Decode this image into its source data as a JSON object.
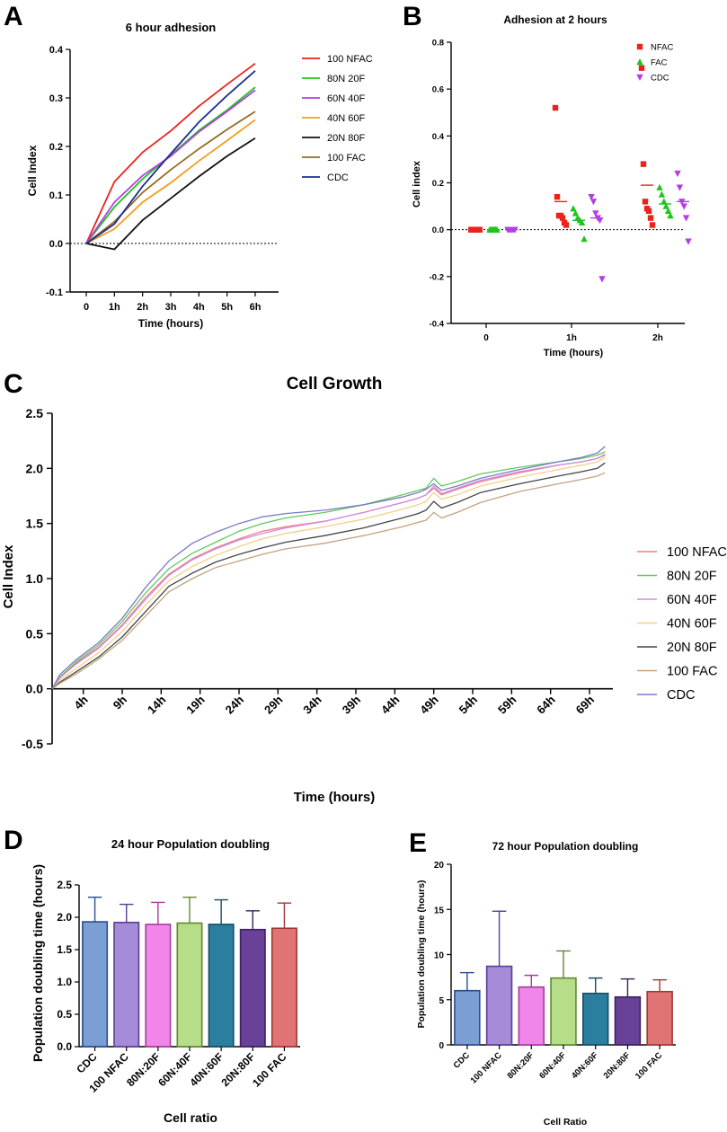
{
  "panels": {
    "A": {
      "label": "A"
    },
    "B": {
      "label": "B"
    },
    "C": {
      "label": "C"
    },
    "D": {
      "label": "D"
    },
    "E": {
      "label": "E"
    }
  },
  "chart_data": [
    {
      "id": "A",
      "type": "line",
      "title": "6 hour adhesion",
      "xlabel": "Time (hours)",
      "ylabel": "Cell Index",
      "categories": [
        "0",
        "1h",
        "2h",
        "3h",
        "4h",
        "5h",
        "6h"
      ],
      "ylim": [
        -0.1,
        0.4
      ],
      "yticks": [
        "-0.1",
        "0.0",
        "0.1",
        "0.2",
        "0.3",
        "0.4"
      ],
      "reference_line": 0,
      "legend": "right",
      "series": [
        {
          "name": "100 NFAC",
          "color": "#e8241c",
          "values": [
            0,
            0.127,
            0.188,
            0.232,
            0.283,
            0.328,
            0.371
          ]
        },
        {
          "name": "80N 20F",
          "color": "#1fc41c",
          "values": [
            0,
            0.075,
            0.133,
            0.182,
            0.233,
            0.275,
            0.322
          ]
        },
        {
          "name": "60N 40F",
          "color": "#b23fe0",
          "values": [
            0,
            0.085,
            0.14,
            0.18,
            0.23,
            0.272,
            0.316
          ]
        },
        {
          "name": "40N 60F",
          "color": "#f29c1c",
          "values": [
            0,
            0.03,
            0.085,
            0.125,
            0.17,
            0.212,
            0.255
          ]
        },
        {
          "name": "20N 80F",
          "color": "#111111",
          "values": [
            0,
            -0.012,
            0.048,
            0.093,
            0.138,
            0.18,
            0.217
          ]
        },
        {
          "name": "100 FAC",
          "color": "#946b22",
          "values": [
            0,
            0.045,
            0.105,
            0.152,
            0.195,
            0.235,
            0.272
          ]
        },
        {
          "name": "CDC",
          "color": "#1d2f8e",
          "values": [
            0,
            0.04,
            0.118,
            0.185,
            0.25,
            0.305,
            0.356
          ]
        }
      ]
    },
    {
      "id": "B",
      "type": "scatter",
      "title": "Adhesion at 2 hours",
      "xlabel": "Time (hours)",
      "ylabel": "Cell index",
      "categories": [
        "0",
        "1h",
        "2h"
      ],
      "ylim": [
        -0.4,
        0.8
      ],
      "yticks": [
        "-0.4",
        "-0.2",
        "0.0",
        "0.2",
        "0.4",
        "0.6",
        "0.8"
      ],
      "reference_line": 0,
      "legend": "top-right",
      "series": [
        {
          "name": "NFAC",
          "color": "#e8241c",
          "marker": "square",
          "groups": [
            {
              "category": "0",
              "mean": 0,
              "points": [
                0,
                0,
                0,
                0,
                0,
                0,
                0
              ]
            },
            {
              "category": "1h",
              "mean": 0.12,
              "points": [
                0.52,
                0.14,
                0.06,
                0.06,
                0.05,
                0.03,
                0.02
              ]
            },
            {
              "category": "2h",
              "mean": 0.19,
              "points": [
                0.69,
                0.28,
                0.12,
                0.09,
                0.08,
                0.05,
                0.02
              ]
            }
          ]
        },
        {
          "name": "FAC",
          "color": "#1fc41c",
          "marker": "triangle-up",
          "groups": [
            {
              "category": "0",
              "mean": 0,
              "points": [
                0,
                0,
                0,
                0,
                0,
                0
              ]
            },
            {
              "category": "1h",
              "mean": 0.04,
              "points": [
                0.09,
                0.07,
                0.05,
                0.04,
                0.03,
                -0.04
              ]
            },
            {
              "category": "2h",
              "mean": 0.11,
              "points": [
                0.18,
                0.15,
                0.12,
                0.1,
                0.08,
                0.06
              ]
            }
          ]
        },
        {
          "name": "CDC",
          "color": "#b23fe0",
          "marker": "triangle-down",
          "groups": [
            {
              "category": "0",
              "mean": 0,
              "points": [
                0,
                0,
                0,
                0,
                0,
                0
              ]
            },
            {
              "category": "1h",
              "mean": 0.05,
              "points": [
                0.14,
                0.12,
                0.07,
                0.05,
                0.04,
                -0.21
              ]
            },
            {
              "category": "2h",
              "mean": 0.12,
              "points": [
                0.24,
                0.18,
                0.12,
                0.1,
                0.05,
                -0.05
              ]
            }
          ]
        }
      ]
    },
    {
      "id": "C",
      "type": "line",
      "title": "Cell Growth",
      "xlabel": "Time (hours)",
      "ylabel": "Cell Index",
      "tick_labels": [
        "4h",
        "9h",
        "14h",
        "19h",
        "24h",
        "29h",
        "34h",
        "39h",
        "44h",
        "49h",
        "54h",
        "59h",
        "64h",
        "69h"
      ],
      "tick_values": [
        4,
        9,
        14,
        19,
        24,
        29,
        34,
        39,
        44,
        49,
        54,
        59,
        64,
        69
      ],
      "xlim": [
        0,
        72
      ],
      "ylim": [
        -0.5,
        2.5
      ],
      "yticks": [
        "-0.5",
        "0.0",
        "0.5",
        "1.0",
        "1.5",
        "2.0",
        "2.5"
      ],
      "legend": "right",
      "x": [
        0,
        1,
        3,
        6,
        9,
        12,
        15,
        18,
        21,
        24,
        27,
        30,
        35,
        40,
        45,
        47,
        48,
        49,
        50,
        52,
        55,
        60,
        65,
        68,
        70,
        71
      ],
      "series": [
        {
          "name": "100 NFAC",
          "color": "#ef7f86",
          "values": [
            0,
            0.1,
            0.23,
            0.38,
            0.58,
            0.83,
            1.04,
            1.18,
            1.28,
            1.36,
            1.43,
            1.47,
            1.52,
            1.6,
            1.69,
            1.73,
            1.76,
            1.82,
            1.76,
            1.81,
            1.88,
            1.96,
            2.03,
            2.06,
            2.09,
            2.12
          ]
        },
        {
          "name": "80N 20F",
          "color": "#5fc95c",
          "values": [
            0,
            0.11,
            0.24,
            0.4,
            0.61,
            0.87,
            1.09,
            1.23,
            1.33,
            1.43,
            1.5,
            1.55,
            1.6,
            1.67,
            1.76,
            1.8,
            1.82,
            1.91,
            1.84,
            1.88,
            1.95,
            2.01,
            2.06,
            2.09,
            2.12,
            2.15
          ]
        },
        {
          "name": "60N 40F",
          "color": "#d08ae0",
          "values": [
            0,
            0.1,
            0.22,
            0.37,
            0.57,
            0.81,
            1.03,
            1.17,
            1.27,
            1.35,
            1.41,
            1.46,
            1.52,
            1.6,
            1.69,
            1.73,
            1.76,
            1.84,
            1.77,
            1.82,
            1.89,
            1.97,
            2.03,
            2.06,
            2.09,
            2.13
          ]
        },
        {
          "name": "40N 60F",
          "color": "#f3d085",
          "values": [
            0,
            0.08,
            0.18,
            0.33,
            0.52,
            0.76,
            0.98,
            1.11,
            1.21,
            1.29,
            1.36,
            1.41,
            1.47,
            1.54,
            1.63,
            1.67,
            1.7,
            1.78,
            1.72,
            1.76,
            1.84,
            1.92,
            1.99,
            2.03,
            2.06,
            2.1
          ]
        },
        {
          "name": "20N 80F",
          "color": "#444444",
          "values": [
            0,
            0.06,
            0.15,
            0.29,
            0.47,
            0.7,
            0.93,
            1.05,
            1.15,
            1.22,
            1.28,
            1.33,
            1.39,
            1.46,
            1.55,
            1.59,
            1.62,
            1.7,
            1.64,
            1.69,
            1.78,
            1.86,
            1.93,
            1.97,
            2.0,
            2.05
          ]
        },
        {
          "name": "100 FAC",
          "color": "#c4a27e",
          "values": [
            0,
            0.05,
            0.13,
            0.27,
            0.44,
            0.66,
            0.88,
            1.0,
            1.1,
            1.16,
            1.22,
            1.27,
            1.32,
            1.39,
            1.47,
            1.51,
            1.53,
            1.6,
            1.55,
            1.6,
            1.69,
            1.79,
            1.86,
            1.9,
            1.93,
            1.96
          ]
        },
        {
          "name": "CDC",
          "color": "#7c79c6",
          "values": [
            0,
            0.13,
            0.26,
            0.42,
            0.64,
            0.92,
            1.16,
            1.32,
            1.42,
            1.5,
            1.56,
            1.59,
            1.62,
            1.67,
            1.74,
            1.78,
            1.81,
            1.86,
            1.8,
            1.84,
            1.91,
            1.99,
            2.06,
            2.1,
            2.14,
            2.2
          ]
        }
      ]
    },
    {
      "id": "D",
      "type": "bar",
      "title": "24 hour Population doubling",
      "xlabel": "Cell ratio",
      "ylabel": "Population doubling time (hours)",
      "categories": [
        "CDC",
        "100 NFAC",
        "80N:20F",
        "60N:40F",
        "40N:60F",
        "20N:80F",
        "100 FAC"
      ],
      "values": [
        1.93,
        1.92,
        1.89,
        1.91,
        1.89,
        1.81,
        1.83
      ],
      "errors": [
        0.38,
        0.28,
        0.34,
        0.4,
        0.38,
        0.29,
        0.39
      ],
      "colors": [
        "#7b9fd4",
        "#a58bd8",
        "#f087e8",
        "#b6dd87",
        "#2a7f9e",
        "#6a4199",
        "#e07474"
      ],
      "edge_colors": [
        "#2b4e8a",
        "#5a3d96",
        "#a73b9e",
        "#5f8a32",
        "#174e63",
        "#3b2160",
        "#a33535"
      ],
      "ylim": [
        0,
        2.5
      ],
      "yticks": [
        "0.0",
        "0.5",
        "1.0",
        "1.5",
        "2.0",
        "2.5"
      ]
    },
    {
      "id": "E",
      "type": "bar",
      "title": "72 hour Population doubling",
      "xlabel": "Cell Ratio",
      "ylabel": "Population doubling time (hours)",
      "categories": [
        "CDC",
        "100 NFAC",
        "80N:20F",
        "60N:40F",
        "40N:60F",
        "20N:80F",
        "100 FAC"
      ],
      "values": [
        6.0,
        8.7,
        6.4,
        7.4,
        5.7,
        5.3,
        5.9
      ],
      "errors": [
        2.0,
        6.1,
        1.3,
        3.0,
        1.7,
        2.0,
        1.3
      ],
      "colors": [
        "#7b9fd4",
        "#a58bd8",
        "#f087e8",
        "#b6dd87",
        "#2a7f9e",
        "#6a4199",
        "#e07474"
      ],
      "edge_colors": [
        "#2b4e8a",
        "#5a3d96",
        "#a73b9e",
        "#5f8a32",
        "#174e63",
        "#3b2160",
        "#a33535"
      ],
      "ylim": [
        0,
        20
      ],
      "yticks": [
        "0",
        "5",
        "10",
        "15",
        "20"
      ]
    }
  ]
}
